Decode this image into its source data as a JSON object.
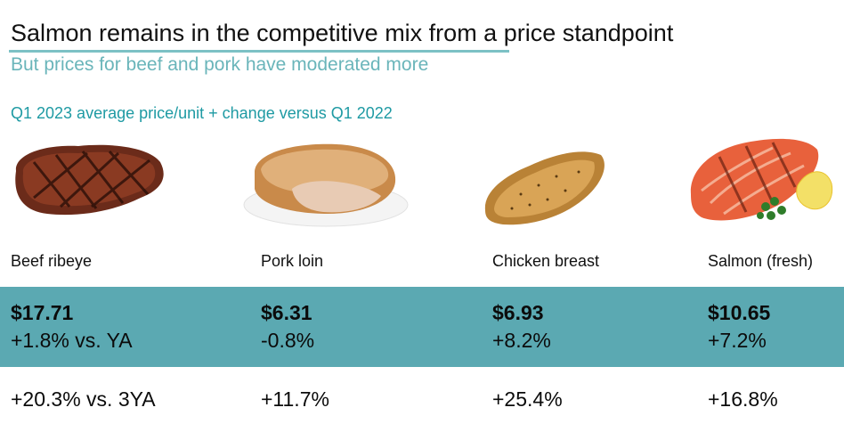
{
  "slide": {
    "title": "Salmon remains in the competitive mix from a price standpoint",
    "subtitle": "But prices for beef and pork have moderated more",
    "section_label": "Q1 2023 average price/unit + change versus Q1 2022",
    "accent_color": "#5ba9b2",
    "subtitle_color": "#6ab5ba"
  },
  "items": [
    {
      "label": "Beef ribeye",
      "image": "grilled-ribeye-steak",
      "price": "$17.71",
      "vs_ya": "+1.8% vs. YA",
      "vs_3ya": "+20.3% vs. 3YA"
    },
    {
      "label": "Pork loin",
      "image": "roasted-pork-loin-on-plate",
      "price": "$6.31",
      "vs_ya": "-0.8%",
      "vs_3ya": "+11.7%"
    },
    {
      "label": "Chicken breast",
      "image": "seasoned-chicken-breast",
      "price": "$6.93",
      "vs_ya": "+8.2%",
      "vs_3ya": "+25.4%"
    },
    {
      "label": "Salmon (fresh)",
      "image": "grilled-salmon-fillet-with-lemon",
      "price": "$10.65",
      "vs_ya": "+7.2%",
      "vs_3ya": "+16.8%"
    }
  ]
}
